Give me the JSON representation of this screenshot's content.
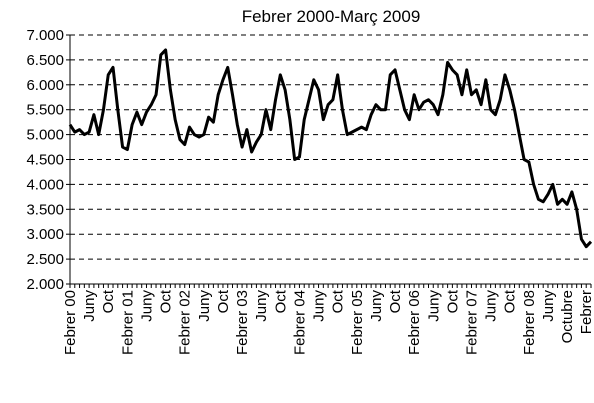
{
  "chart_data": {
    "type": "line",
    "title": "Febrer 2000-Març 2009",
    "categories": [
      "Febrer 00",
      null,
      null,
      null,
      "Juny",
      null,
      null,
      null,
      "Oct",
      null,
      null,
      null,
      "Febrer 01",
      null,
      null,
      null,
      "Juny",
      null,
      null,
      null,
      "Oct",
      null,
      null,
      null,
      "Febrer 02",
      null,
      null,
      null,
      "Juny",
      null,
      null,
      null,
      "Oct",
      null,
      null,
      null,
      "Febrer 03",
      null,
      null,
      null,
      "Juny",
      null,
      null,
      null,
      "Oct",
      null,
      null,
      null,
      "Febrer 04",
      null,
      null,
      null,
      "Juny",
      null,
      null,
      null,
      "Oct",
      null,
      null,
      null,
      "Febrer 05",
      null,
      null,
      null,
      "Juny",
      null,
      null,
      null,
      "Oct",
      null,
      null,
      null,
      "Febrer 06",
      null,
      null,
      null,
      "Juny",
      null,
      null,
      null,
      "Oct",
      null,
      null,
      null,
      "Febrer 07",
      null,
      null,
      null,
      "Juny",
      null,
      null,
      null,
      "Oct",
      null,
      null,
      null,
      "Febrer 08",
      null,
      null,
      null,
      "Juny",
      null,
      null,
      null,
      "Octubre",
      null,
      null,
      null,
      "Febrer",
      null
    ],
    "values": [
      5200,
      5050,
      5100,
      5000,
      5050,
      5400,
      5000,
      5500,
      6200,
      6350,
      5500,
      4750,
      4700,
      5200,
      5450,
      5200,
      5450,
      5600,
      5800,
      6600,
      6700,
      5900,
      5300,
      4900,
      4800,
      5150,
      5000,
      4950,
      5000,
      5350,
      5250,
      5800,
      6100,
      6350,
      5800,
      5200,
      4750,
      5100,
      4650,
      4850,
      5000,
      5500,
      5100,
      5700,
      6200,
      5900,
      5300,
      4500,
      4550,
      5300,
      5700,
      6100,
      5900,
      5300,
      5600,
      5700,
      6200,
      5500,
      5000,
      5050,
      5100,
      5150,
      5100,
      5400,
      5600,
      5500,
      5500,
      6200,
      6300,
      5900,
      5500,
      5300,
      5800,
      5500,
      5650,
      5700,
      5600,
      5400,
      5800,
      6450,
      6300,
      6200,
      5800,
      6300,
      5800,
      5900,
      5600,
      6100,
      5500,
      5400,
      5700,
      6200,
      5900,
      5500,
      5000,
      4500,
      4450,
      4000,
      3700,
      3650,
      3800,
      4000,
      3600,
      3700,
      3600,
      3850,
      3500,
      2900,
      2750,
      2850
    ],
    "color": "#000000",
    "ylim": [
      2000,
      7000
    ],
    "yticks": [
      {
        "value": 2000,
        "label": "2.000"
      },
      {
        "value": 2500,
        "label": "2.500"
      },
      {
        "value": 3000,
        "label": "3.000"
      },
      {
        "value": 3500,
        "label": "3.500"
      },
      {
        "value": 4000,
        "label": "4.000"
      },
      {
        "value": 4500,
        "label": "4.500"
      },
      {
        "value": 5000,
        "label": "5.000"
      },
      {
        "value": 5500,
        "label": "5.500"
      },
      {
        "value": 6000,
        "label": "6.000"
      },
      {
        "value": 6500,
        "label": "6.500"
      },
      {
        "value": 7000,
        "label": "7.000"
      }
    ],
    "grid": true
  }
}
